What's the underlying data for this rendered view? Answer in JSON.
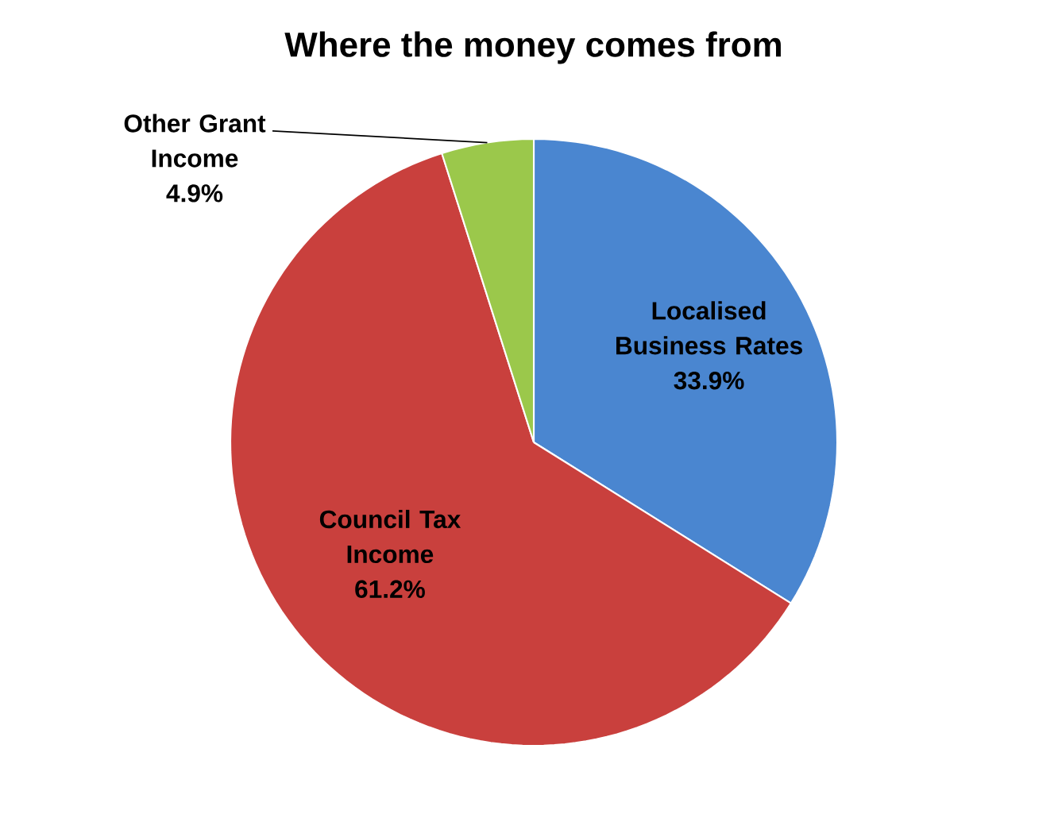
{
  "chart_data": {
    "type": "pie",
    "title": "Where the money comes from",
    "categories": [
      "Localised Business Rates",
      "Council Tax Income",
      "Other Grant Income"
    ],
    "values": [
      33.9,
      61.2,
      4.9
    ],
    "value_labels": [
      "33.9%",
      "61.2%",
      "4.9%"
    ],
    "colors": [
      "#4a86d0",
      "#c9403d",
      "#9bc84b"
    ]
  }
}
